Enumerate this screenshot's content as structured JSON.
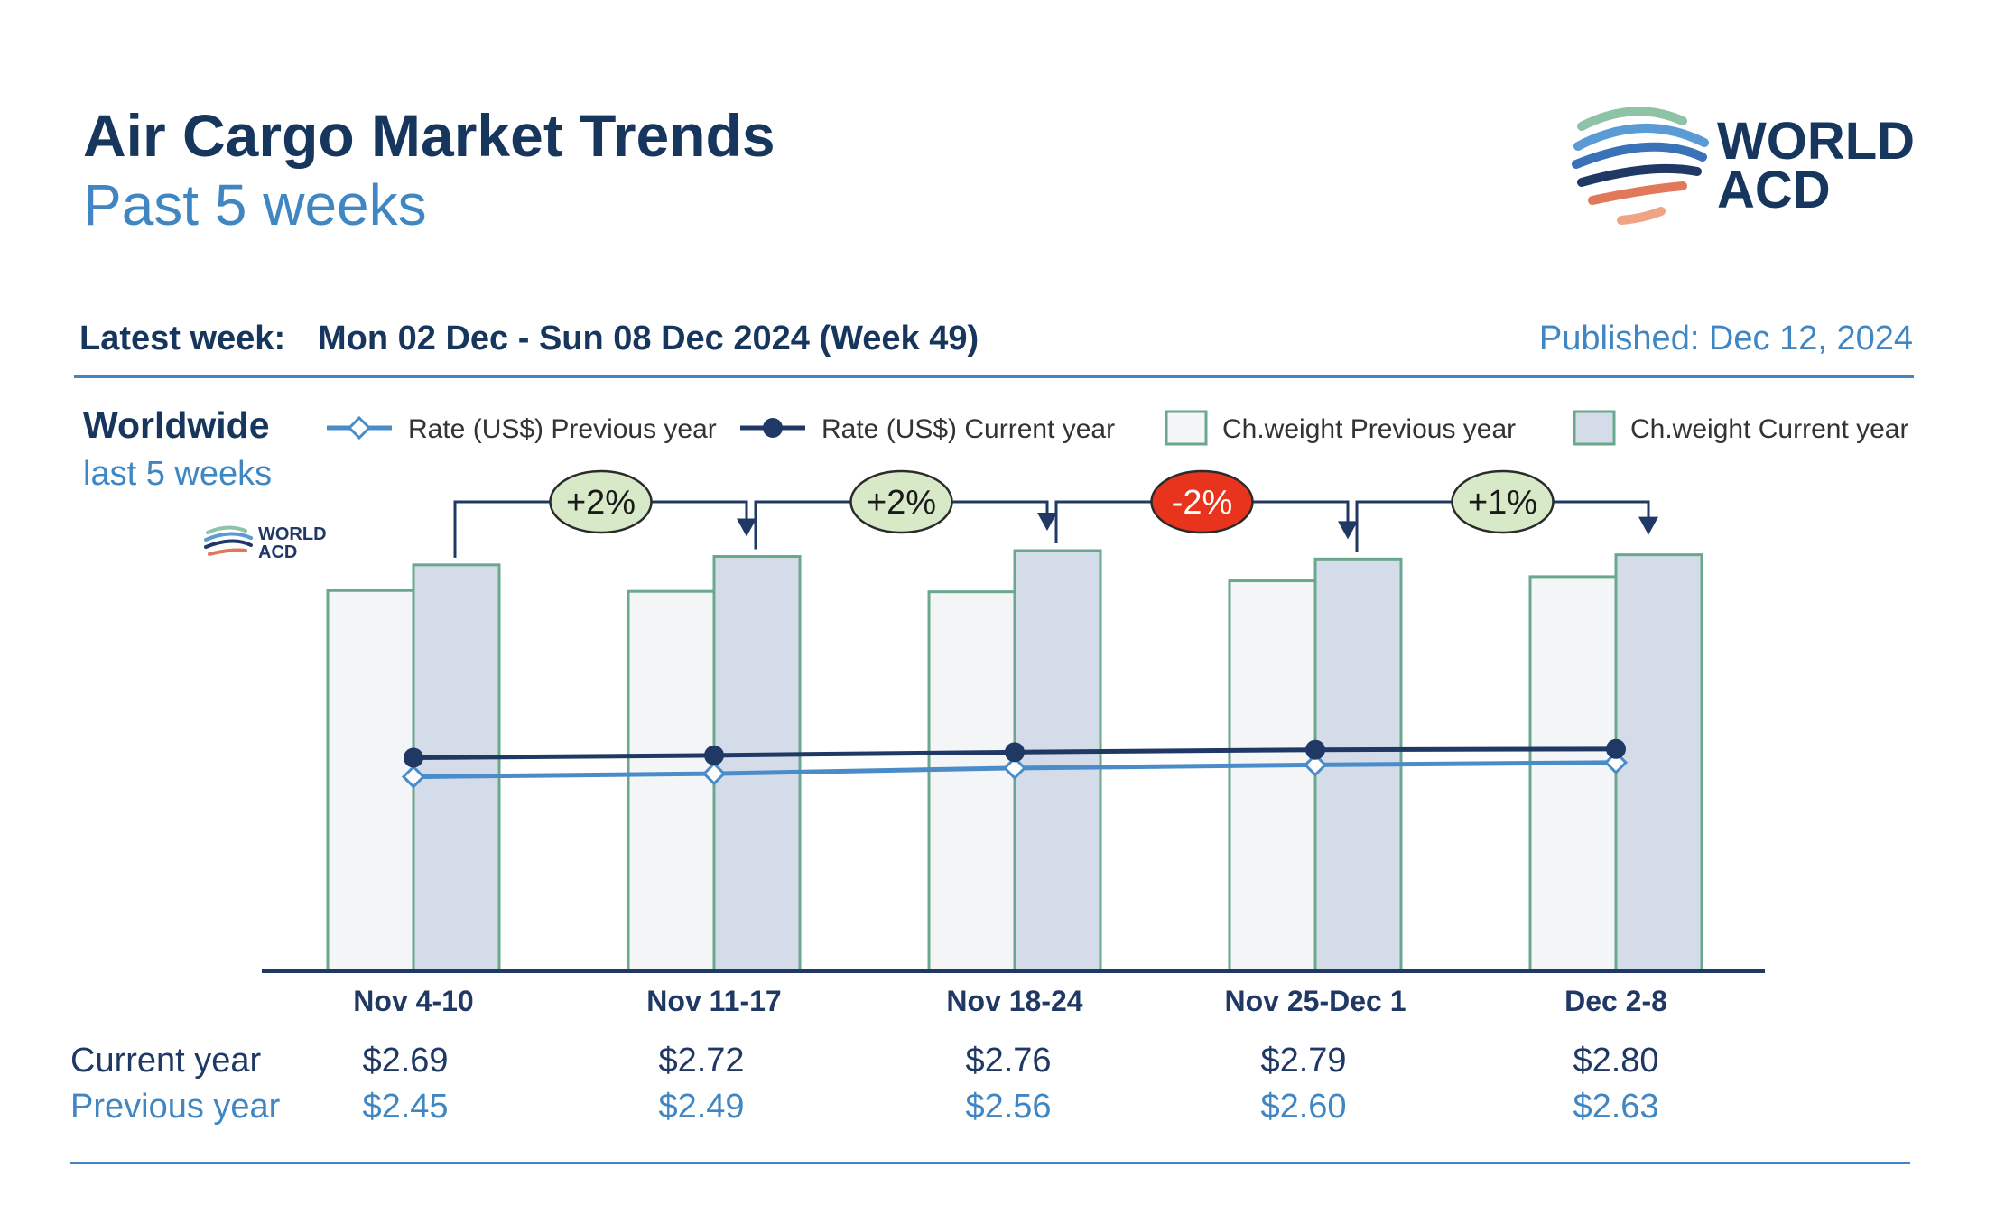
{
  "header": {
    "title": "Air Cargo Market Trends",
    "subtitle": "Past 5 weeks",
    "latest_week_label": "Latest week:",
    "latest_week_value": "Mon 02 Dec - Sun 08 Dec 2024 (Week 49)",
    "published": "Published: Dec 12, 2024"
  },
  "brand": {
    "line1": "WORLD",
    "line2": "ACD"
  },
  "region": {
    "title": "Worldwide",
    "subtitle": "last 5 weeks"
  },
  "table": {
    "current_label": "Current year",
    "previous_label": "Previous year"
  },
  "colors": {
    "navy": "#1f3864",
    "rate_prev": "#4a8cc9",
    "bar_border": "#6aa88c",
    "bar_prev_fill": "#f4f5f6",
    "bar_curr_fill": "#d4dce9",
    "pill_up": "#d8e9c7",
    "pill_down": "#e8341c"
  },
  "chart_data": {
    "type": "bar",
    "categories": [
      "Nov 4-10",
      "Nov 11-17",
      "Nov 18-24",
      "Nov 25-Dec 1",
      "Dec 2-8"
    ],
    "series": [
      {
        "name": "Ch.weight Previous year",
        "kind": "bar",
        "values": [
          90.5,
          90.3,
          90.2,
          92.8,
          93.8
        ]
      },
      {
        "name": "Ch.weight Current year",
        "kind": "bar",
        "values": [
          96.6,
          98.6,
          100.0,
          98.0,
          99.0
        ]
      },
      {
        "name": "Rate (US$) Previous year",
        "kind": "line",
        "values": [
          2.45,
          2.49,
          2.56,
          2.6,
          2.63
        ]
      },
      {
        "name": "Rate (US$) Current year",
        "kind": "line",
        "values": [
          2.69,
          2.72,
          2.76,
          2.79,
          2.8
        ]
      }
    ],
    "rate_labels_current": [
      "$2.69",
      "$2.72",
      "$2.76",
      "$2.79",
      "$2.80"
    ],
    "rate_labels_previous": [
      "$2.45",
      "$2.49",
      "$2.56",
      "$2.60",
      "$2.63"
    ],
    "week_changes": [
      "+2%",
      "+2%",
      "-2%",
      "+1%"
    ],
    "week_change_directions": [
      "up",
      "up",
      "down",
      "up"
    ],
    "weight_axis": [
      0,
      100
    ],
    "rate_axis": [
      0,
      5.3
    ],
    "grid": false,
    "legend_position": "top"
  }
}
